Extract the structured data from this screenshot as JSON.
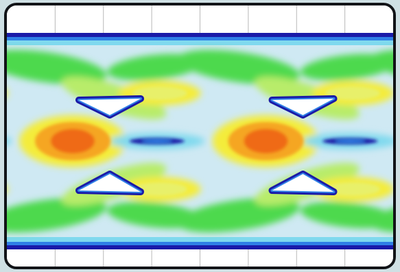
{
  "chart_data": {
    "type": "heatmap",
    "title": "",
    "xlabel": "",
    "ylabel": "",
    "grid": true,
    "legend": "none",
    "colorscale": [
      "#ffffff",
      "#1a1aa8",
      "#2f7fe6",
      "#7fd9ee",
      "#c9f0c0",
      "#4dd94d",
      "#b8ec6a",
      "#f4ec3a",
      "#f5a623",
      "#ef6a18"
    ],
    "background_color": "#cfe9f3",
    "x_gridlines": 7,
    "period_fraction": 0.5
  }
}
